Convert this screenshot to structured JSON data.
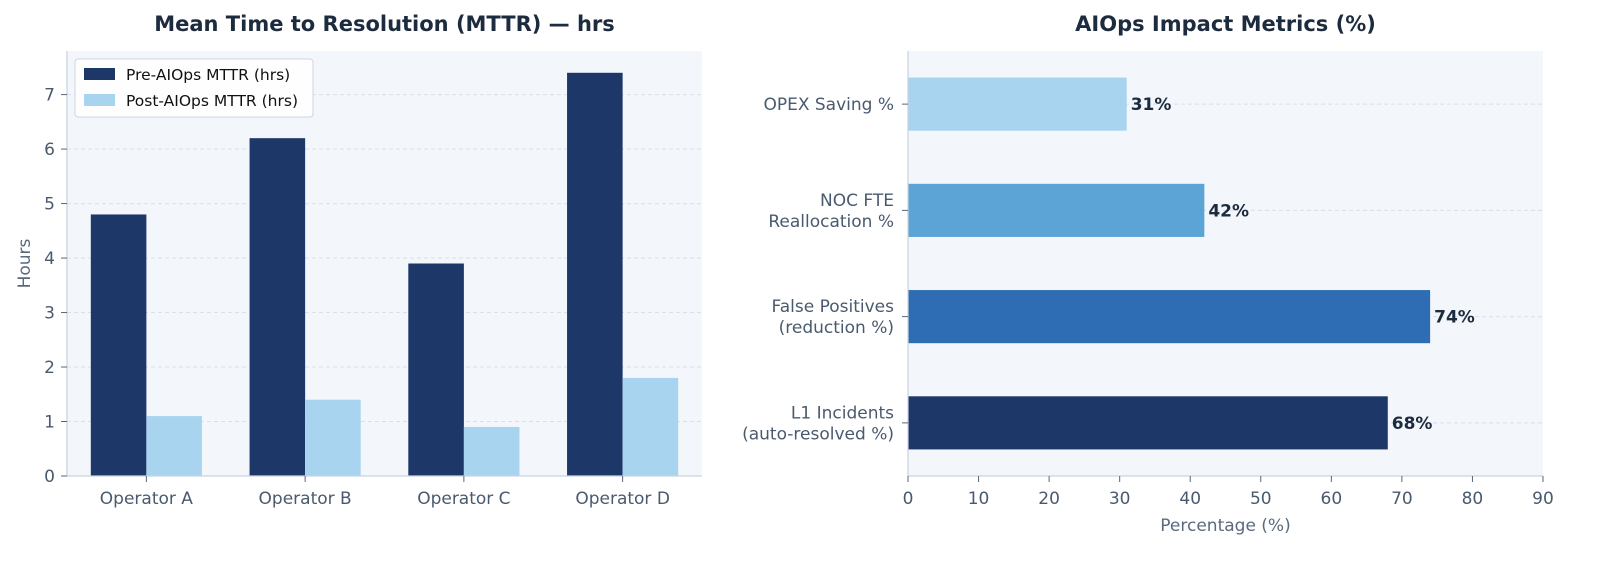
{
  "chart_data": [
    {
      "type": "bar",
      "title": "Mean Time to Resolution (MTTR) — hrs",
      "xlabel": "",
      "ylabel": "Hours",
      "ylim": [
        0,
        7.8
      ],
      "yticks": [
        0,
        1,
        2,
        3,
        4,
        5,
        6,
        7
      ],
      "categories": [
        "Operator A",
        "Operator B",
        "Operator C",
        "Operator D"
      ],
      "series": [
        {
          "name": "Pre-AIOps MTTR (hrs)",
          "values": [
            4.8,
            6.2,
            3.9,
            7.4
          ],
          "color": "#1d3769"
        },
        {
          "name": "Post-AIOps MTTR (hrs)",
          "values": [
            1.1,
            1.4,
            0.9,
            1.8
          ],
          "color": "#a9d4ef"
        }
      ],
      "legend": "top-left",
      "grid": "y-dashed",
      "background": "#f3f6fb"
    },
    {
      "type": "bar",
      "orientation": "horizontal",
      "title": "AIOps Impact Metrics (%)",
      "xlabel": "Percentage (%)",
      "ylabel": "",
      "xlim": [
        0,
        90
      ],
      "xticks": [
        0,
        10,
        20,
        30,
        40,
        50,
        60,
        70,
        80,
        90
      ],
      "categories": [
        [
          "L1 Incidents",
          "(auto-resolved %)"
        ],
        [
          "False Positives",
          "(reduction %)"
        ],
        [
          "NOC FTE",
          "Reallocation %"
        ],
        [
          "OPEX Saving %"
        ]
      ],
      "values": [
        68,
        74,
        42,
        31
      ],
      "data_labels": [
        "68%",
        "74%",
        "42%",
        "31%"
      ],
      "colors": [
        "#1d3769",
        "#2e6db4",
        "#5ca4d6",
        "#a9d4ef"
      ],
      "grid": "x-dashed",
      "background": "#f3f6fb"
    }
  ]
}
